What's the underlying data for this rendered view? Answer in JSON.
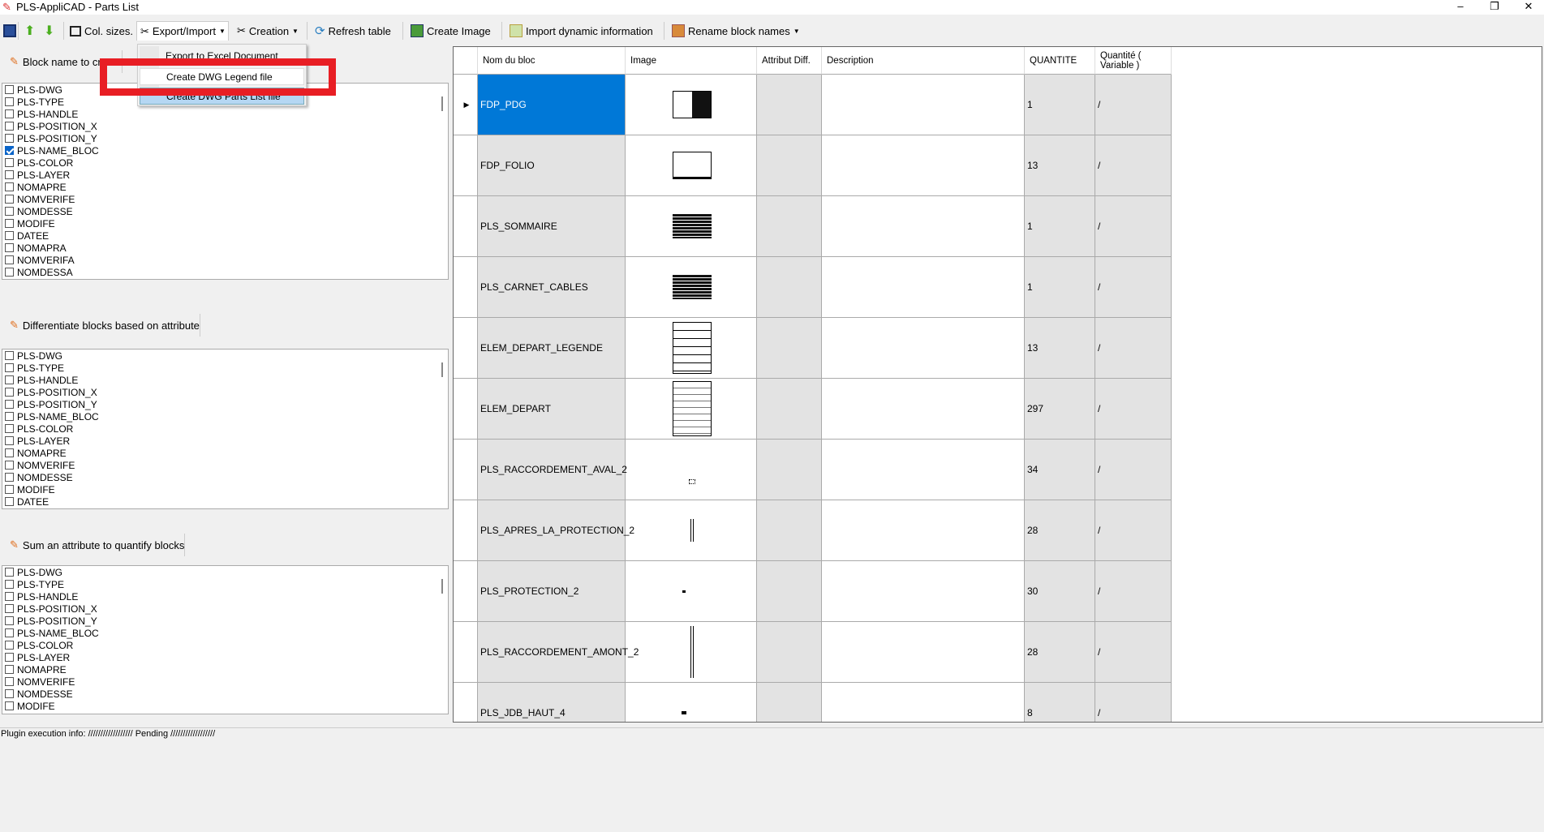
{
  "window": {
    "title": "PLS-AppliCAD - Parts List",
    "minimize": "–",
    "restore": "❐",
    "close": "✕"
  },
  "toolbar": {
    "col_sizes": "Col. sizes.",
    "export_import": "Export/Import",
    "creation": "Creation",
    "refresh": "Refresh table",
    "create_image": "Create Image",
    "import_dynamic": "Import dynamic information",
    "rename": "Rename block names"
  },
  "menu": {
    "items": [
      "Export to Excel Document",
      "Create DWG Legend file",
      "Create DWG Parts List file"
    ]
  },
  "sections": [
    {
      "title": "Block name to create",
      "items": [
        "PLS-DWG",
        "PLS-TYPE",
        "PLS-HANDLE",
        "PLS-POSITION_X",
        "PLS-POSITION_Y",
        "PLS-NAME_BLOC",
        "PLS-COLOR",
        "PLS-LAYER",
        "NOMAPRE",
        "NOMVERIFE",
        "NOMDESSE",
        "MODIFE",
        "DATEE",
        "NOMAPRA",
        "NOMVERIFA",
        "NOMDESSA"
      ],
      "checked": [
        5
      ]
    },
    {
      "title": "Differentiate blocks based on attribute",
      "items": [
        "PLS-DWG",
        "PLS-TYPE",
        "PLS-HANDLE",
        "PLS-POSITION_X",
        "PLS-POSITION_Y",
        "PLS-NAME_BLOC",
        "PLS-COLOR",
        "PLS-LAYER",
        "NOMAPRE",
        "NOMVERIFE",
        "NOMDESSE",
        "MODIFE",
        "DATEE"
      ],
      "checked": []
    },
    {
      "title": "Sum an attribute to quantify blocks",
      "items": [
        "PLS-DWG",
        "PLS-TYPE",
        "PLS-HANDLE",
        "PLS-POSITION_X",
        "PLS-POSITION_Y",
        "PLS-NAME_BLOC",
        "PLS-COLOR",
        "PLS-LAYER",
        "NOMAPRE",
        "NOMVERIFE",
        "NOMDESSE",
        "MODIFE"
      ],
      "checked": []
    }
  ],
  "grid": {
    "columns": [
      "Nom du bloc",
      "Image",
      "Attribut Diff.",
      "Description",
      "QUANTITE",
      "Quantité ( Variable )"
    ],
    "rows": [
      {
        "name": "FDP_PDG",
        "qty": "1",
        "var": "/"
      },
      {
        "name": "FDP_FOLIO",
        "qty": "13",
        "var": "/"
      },
      {
        "name": "PLS_SOMMAIRE",
        "qty": "1",
        "var": "/"
      },
      {
        "name": "PLS_CARNET_CABLES",
        "qty": "1",
        "var": "/"
      },
      {
        "name": "ELEM_DEPART_LEGENDE",
        "qty": "13",
        "var": "/"
      },
      {
        "name": "ELEM_DEPART",
        "qty": "297",
        "var": "/"
      },
      {
        "name": "PLS_RACCORDEMENT_AVAL_2",
        "qty": "34",
        "var": "/"
      },
      {
        "name": "PLS_APRES_LA_PROTECTION_2",
        "qty": "28",
        "var": "/"
      },
      {
        "name": "PLS_PROTECTION_2",
        "qty": "30",
        "var": "/"
      },
      {
        "name": "PLS_RACCORDEMENT_AMONT_2",
        "qty": "28",
        "var": "/"
      },
      {
        "name": "PLS_JDB_HAUT_4",
        "qty": "8",
        "var": "/"
      }
    ],
    "selected_color": "#0078d7"
  },
  "status": "Plugin execution info: ////////////////// Pending //////////////////"
}
